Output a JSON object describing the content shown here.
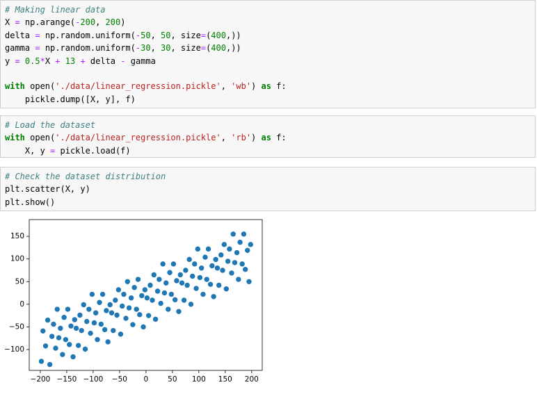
{
  "cells": [
    {
      "lines": [
        [
          {
            "text": "# Making linear data",
            "color": "#408080",
            "style": "italic"
          }
        ],
        [
          {
            "text": "X ",
            "color": "#000000"
          },
          {
            "text": "=",
            "color": "#aa22ff"
          },
          {
            "text": " np.arange(",
            "color": "#000000"
          },
          {
            "text": "-",
            "color": "#aa22ff"
          },
          {
            "text": "200",
            "color": "#008000"
          },
          {
            "text": ", ",
            "color": "#000000"
          },
          {
            "text": "200",
            "color": "#008000"
          },
          {
            "text": ")",
            "color": "#000000"
          }
        ],
        [
          {
            "text": "delta ",
            "color": "#000000"
          },
          {
            "text": "=",
            "color": "#aa22ff"
          },
          {
            "text": " np.random.uniform(",
            "color": "#000000"
          },
          {
            "text": "-",
            "color": "#aa22ff"
          },
          {
            "text": "50",
            "color": "#008000"
          },
          {
            "text": ", ",
            "color": "#000000"
          },
          {
            "text": "50",
            "color": "#008000"
          },
          {
            "text": ", size",
            "color": "#000000"
          },
          {
            "text": "=",
            "color": "#aa22ff"
          },
          {
            "text": "(",
            "color": "#000000"
          },
          {
            "text": "400",
            "color": "#008000"
          },
          {
            "text": ",))",
            "color": "#000000"
          }
        ],
        [
          {
            "text": "gamma ",
            "color": "#000000"
          },
          {
            "text": "=",
            "color": "#aa22ff"
          },
          {
            "text": " np.random.uniform(",
            "color": "#000000"
          },
          {
            "text": "-",
            "color": "#aa22ff"
          },
          {
            "text": "30",
            "color": "#008000"
          },
          {
            "text": ", ",
            "color": "#000000"
          },
          {
            "text": "30",
            "color": "#008000"
          },
          {
            "text": ", size",
            "color": "#000000"
          },
          {
            "text": "=",
            "color": "#aa22ff"
          },
          {
            "text": "(",
            "color": "#000000"
          },
          {
            "text": "400",
            "color": "#008000"
          },
          {
            "text": ",))",
            "color": "#000000"
          }
        ],
        [
          {
            "text": "y ",
            "color": "#000000"
          },
          {
            "text": "=",
            "color": "#aa22ff"
          },
          {
            "text": " ",
            "color": "#000000"
          },
          {
            "text": "0.5",
            "color": "#008000"
          },
          {
            "text": "*",
            "color": "#aa22ff"
          },
          {
            "text": "X ",
            "color": "#000000"
          },
          {
            "text": "+",
            "color": "#aa22ff"
          },
          {
            "text": " ",
            "color": "#000000"
          },
          {
            "text": "13",
            "color": "#008000"
          },
          {
            "text": " ",
            "color": "#000000"
          },
          {
            "text": "+",
            "color": "#aa22ff"
          },
          {
            "text": " delta ",
            "color": "#000000"
          },
          {
            "text": "-",
            "color": "#aa22ff"
          },
          {
            "text": " gamma",
            "color": "#000000"
          }
        ],
        [],
        [
          {
            "text": "with",
            "color": "#008000",
            "style": "bold"
          },
          {
            "text": " open(",
            "color": "#000000"
          },
          {
            "text": "'./data/linear_regression.pickle'",
            "color": "#ba2121"
          },
          {
            "text": ", ",
            "color": "#000000"
          },
          {
            "text": "'wb'",
            "color": "#ba2121"
          },
          {
            "text": ") ",
            "color": "#000000"
          },
          {
            "text": "as",
            "color": "#008000",
            "style": "bold"
          },
          {
            "text": " f:",
            "color": "#000000"
          }
        ],
        [
          {
            "text": "    pickle.dump([X, y], f)",
            "color": "#000000"
          }
        ]
      ]
    },
    {
      "lines": [
        [
          {
            "text": "# Load the dataset",
            "color": "#408080",
            "style": "italic"
          }
        ],
        [
          {
            "text": "with",
            "color": "#008000",
            "style": "bold"
          },
          {
            "text": " open(",
            "color": "#000000"
          },
          {
            "text": "'./data/linear_regression.pickle'",
            "color": "#ba2121"
          },
          {
            "text": ", ",
            "color": "#000000"
          },
          {
            "text": "'rb'",
            "color": "#ba2121"
          },
          {
            "text": ") ",
            "color": "#000000"
          },
          {
            "text": "as",
            "color": "#008000",
            "style": "bold"
          },
          {
            "text": " f:",
            "color": "#000000"
          }
        ],
        [
          {
            "text": "    X, y ",
            "color": "#000000"
          },
          {
            "text": "=",
            "color": "#aa22ff"
          },
          {
            "text": " pickle.load(f)",
            "color": "#000000"
          }
        ]
      ]
    },
    {
      "lines": [
        [
          {
            "text": "# Check the dataset distribution",
            "color": "#408080",
            "style": "italic"
          }
        ],
        [
          {
            "text": "plt.scatter(X, y)",
            "color": "#000000"
          }
        ],
        [
          {
            "text": "plt.show()",
            "color": "#000000"
          }
        ]
      ]
    }
  ],
  "chart_data": {
    "type": "scatter",
    "color": "#1f77b4",
    "x": [
      -198,
      -195,
      -190,
      -186,
      -182,
      -178,
      -175,
      -171,
      -168,
      -165,
      -162,
      -158,
      -155,
      -152,
      -148,
      -145,
      -142,
      -138,
      -135,
      -132,
      -128,
      -125,
      -122,
      -118,
      -115,
      -112,
      -108,
      -105,
      -102,
      -98,
      -95,
      -92,
      -88,
      -85,
      -82,
      -78,
      -75,
      -72,
      -68,
      -65,
      -62,
      -58,
      -55,
      -52,
      -48,
      -45,
      -42,
      -38,
      -35,
      -32,
      -28,
      -25,
      -22,
      -18,
      -15,
      -12,
      -8,
      -5,
      -2,
      2,
      5,
      8,
      12,
      15,
      18,
      22,
      25,
      28,
      32,
      35,
      38,
      42,
      45,
      48,
      52,
      55,
      58,
      62,
      65,
      68,
      72,
      75,
      78,
      82,
      85,
      88,
      92,
      95,
      98,
      102,
      105,
      108,
      112,
      115,
      118,
      122,
      125,
      128,
      132,
      135,
      138,
      142,
      145,
      148,
      152,
      155,
      158,
      162,
      165,
      168,
      172,
      175,
      178,
      182,
      185,
      188,
      192,
      195,
      198
    ],
    "y": [
      -126,
      -59,
      -92,
      -35,
      -133,
      -71,
      -44,
      -97,
      -11,
      -74,
      -53,
      -111,
      -29,
      -78,
      -11,
      -89,
      -48,
      -116,
      -34,
      -53,
      -91,
      -24,
      -58,
      -1,
      -99,
      -38,
      -11,
      -64,
      22,
      -41,
      -19,
      -78,
      4,
      -44,
      22,
      -56,
      -14,
      -83,
      -1,
      -19,
      -58,
      9,
      -24,
      32,
      -66,
      -4,
      22,
      -31,
      50,
      -8,
      14,
      -45,
      37,
      -11,
      55,
      -23,
      19,
      -50,
      32,
      14,
      -25,
      42,
      9,
      65,
      -33,
      29,
      55,
      2,
      89,
      25,
      47,
      -11,
      70,
      22,
      89,
      10,
      52,
      -16,
      65,
      47,
      9,
      75,
      42,
      99,
      0,
      62,
      89,
      35,
      122,
      59,
      80,
      22,
      104,
      55,
      122,
      44,
      85,
      17,
      99,
      80,
      42,
      109,
      75,
      132,
      34,
      95,
      122,
      69,
      155,
      92,
      114,
      55,
      137,
      89,
      155,
      77,
      119,
      50,
      132
    ],
    "xlim": [
      -221,
      220
    ],
    "ylim": [
      -146,
      187
    ],
    "xticks": [
      {
        "value": -200,
        "label": "−200"
      },
      {
        "value": -150,
        "label": "−150"
      },
      {
        "value": -100,
        "label": "−100"
      },
      {
        "value": -50,
        "label": "−50"
      },
      0,
      50,
      100,
      150,
      200
    ],
    "yticks": [
      {
        "value": -100,
        "label": "−100"
      },
      {
        "value": -50,
        "label": "−50"
      },
      0,
      50,
      100,
      150
    ]
  }
}
